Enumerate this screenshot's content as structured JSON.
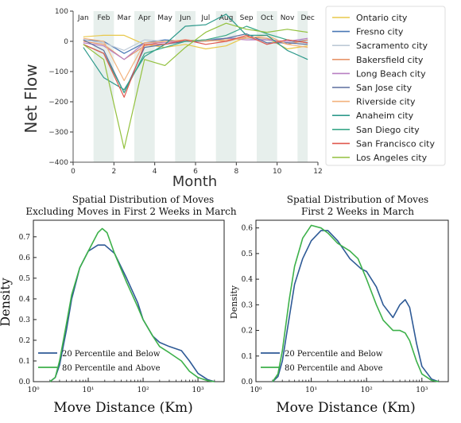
{
  "chart_data": [
    {
      "type": "line",
      "title": "",
      "xlabel": "Month",
      "ylabel": "Net Flow",
      "xlim": [
        0,
        12
      ],
      "ylim": [
        -400,
        100
      ],
      "x_ticks": [
        "0",
        "2",
        "4",
        "6",
        "8",
        "10",
        "12"
      ],
      "y_ticks": [
        "100",
        "0",
        "−100",
        "−200",
        "−300",
        "−400"
      ],
      "month_labels": [
        "Jan",
        "Feb",
        "Mar",
        "Apr",
        "May",
        "Jun",
        "Jul",
        "Aug",
        "Sep",
        "Oct",
        "Nov",
        "Dec"
      ],
      "shaded_bands": [
        [
          1,
          2
        ],
        [
          3,
          4
        ],
        [
          5,
          6
        ],
        [
          7,
          8
        ],
        [
          9,
          10
        ],
        [
          11,
          11.5
        ]
      ],
      "legend_position": "right",
      "x": [
        0.5,
        1.5,
        2.5,
        3.5,
        4.5,
        5.5,
        6.5,
        7.5,
        8.5,
        9.5,
        10.5,
        11.5
      ],
      "series": [
        {
          "name": "Ontario city",
          "color": "#e8c84a",
          "values": [
            15,
            20,
            20,
            -10,
            -20,
            -10,
            -25,
            -15,
            15,
            10,
            -25,
            -15
          ]
        },
        {
          "name": "Fresno city",
          "color": "#4a78b5",
          "values": [
            5,
            0,
            -40,
            -5,
            5,
            0,
            5,
            10,
            10,
            5,
            -5,
            5
          ]
        },
        {
          "name": "Sacramento city",
          "color": "#bdc9d6",
          "values": [
            5,
            -5,
            -30,
            5,
            0,
            0,
            5,
            5,
            10,
            5,
            -5,
            0
          ]
        },
        {
          "name": "Bakersfield city",
          "color": "#e8956a",
          "values": [
            0,
            -10,
            -60,
            -15,
            0,
            0,
            5,
            0,
            15,
            10,
            -10,
            5
          ]
        },
        {
          "name": "Long Beach city",
          "color": "#b87fc2",
          "values": [
            -5,
            -15,
            -60,
            -5,
            -5,
            5,
            0,
            10,
            5,
            5,
            0,
            10
          ]
        },
        {
          "name": "San Jose city",
          "color": "#5c6e9e",
          "values": [
            5,
            -30,
            -170,
            -20,
            -10,
            0,
            0,
            10,
            25,
            -5,
            -5,
            -10
          ]
        },
        {
          "name": "Riverside city",
          "color": "#f2b27c",
          "values": [
            10,
            0,
            -130,
            -5,
            0,
            5,
            0,
            5,
            10,
            20,
            -10,
            -20
          ]
        },
        {
          "name": "Anaheim city",
          "color": "#2f9a8c",
          "values": [
            -20,
            -120,
            -160,
            -50,
            -10,
            50,
            55,
            90,
            20,
            20,
            -30,
            -60
          ]
        },
        {
          "name": "San Diego city",
          "color": "#3aa889",
          "values": [
            -10,
            -40,
            -170,
            -40,
            -20,
            0,
            5,
            20,
            50,
            25,
            5,
            -5
          ]
        },
        {
          "name": "San Francisco city",
          "color": "#e0584e",
          "values": [
            -10,
            -40,
            -185,
            -10,
            -10,
            5,
            -10,
            0,
            20,
            -10,
            5,
            -5
          ]
        },
        {
          "name": "Los Angeles city",
          "color": "#93c13e",
          "values": [
            -10,
            -60,
            -355,
            -60,
            -80,
            -20,
            30,
            60,
            40,
            30,
            40,
            30
          ]
        }
      ]
    },
    {
      "type": "line",
      "title": "Spatial Distribution of Moves",
      "subtitle": "Excluding Moves in First 2 Weeks in March",
      "xlabel": "Move Distance (Km)",
      "ylabel": "Density",
      "x_scale": "log",
      "xlim": [
        1,
        3000
      ],
      "ylim": [
        0,
        0.78
      ],
      "x_ticks": [
        "10⁰",
        "10¹",
        "10²",
        "10³"
      ],
      "y_ticks": [
        "0.0",
        "0.1",
        "0.2",
        "0.3",
        "0.4",
        "0.5",
        "0.6",
        "0.7"
      ],
      "legend_position": "lower-left",
      "series": [
        {
          "name": "20 Percentile and Below",
          "color": "#2e5a96",
          "x": [
            2,
            2.5,
            3,
            4,
            5,
            7,
            10,
            15,
            20,
            30,
            50,
            80,
            100,
            150,
            200,
            300,
            500,
            700,
            1000,
            1500,
            2000
          ],
          "values": [
            0.0,
            0.02,
            0.08,
            0.25,
            0.4,
            0.55,
            0.63,
            0.66,
            0.66,
            0.62,
            0.5,
            0.38,
            0.3,
            0.22,
            0.19,
            0.17,
            0.15,
            0.1,
            0.04,
            0.01,
            0.0
          ]
        },
        {
          "name": "80 Percentile and Above",
          "color": "#3db14a",
          "x": [
            2,
            2.5,
            3,
            4,
            5,
            7,
            10,
            15,
            18,
            22,
            30,
            50,
            80,
            100,
            150,
            200,
            300,
            500,
            700,
            1000,
            1500,
            2000
          ],
          "values": [
            0.0,
            0.02,
            0.1,
            0.28,
            0.42,
            0.55,
            0.63,
            0.72,
            0.74,
            0.72,
            0.62,
            0.48,
            0.36,
            0.3,
            0.22,
            0.17,
            0.14,
            0.1,
            0.05,
            0.02,
            0.005,
            0.0
          ]
        }
      ]
    },
    {
      "type": "line",
      "title": "Spatial Distribution of Moves",
      "subtitle": "First 2 Weeks in March",
      "xlabel": "Move Distance (Km)",
      "ylabel": "Density",
      "x_scale": "log",
      "xlim": [
        1,
        3000
      ],
      "ylim": [
        0,
        0.63
      ],
      "x_ticks": [
        "10⁰",
        "10¹",
        "10²",
        "10³"
      ],
      "y_ticks": [
        "0.0",
        "0.1",
        "0.2",
        "0.3",
        "0.4",
        "0.5",
        "0.6"
      ],
      "legend_position": "lower-left",
      "series": [
        {
          "name": "20 Percentile and Below",
          "color": "#2e5a96",
          "x": [
            2,
            2.5,
            3,
            4,
            5,
            7,
            10,
            15,
            20,
            30,
            50,
            80,
            100,
            150,
            200,
            300,
            400,
            500,
            600,
            800,
            1000,
            1500,
            2000
          ],
          "values": [
            0.0,
            0.02,
            0.08,
            0.25,
            0.38,
            0.48,
            0.55,
            0.59,
            0.59,
            0.55,
            0.48,
            0.44,
            0.43,
            0.37,
            0.3,
            0.25,
            0.3,
            0.32,
            0.29,
            0.15,
            0.06,
            0.01,
            0.0
          ]
        },
        {
          "name": "80 Percentile and Above",
          "color": "#3db14a",
          "x": [
            2,
            2.5,
            3,
            4,
            5,
            7,
            10,
            15,
            20,
            30,
            50,
            70,
            100,
            150,
            200,
            300,
            400,
            500,
            600,
            800,
            1000,
            1500,
            2000
          ],
          "values": [
            0.0,
            0.03,
            0.12,
            0.32,
            0.45,
            0.56,
            0.61,
            0.6,
            0.58,
            0.54,
            0.51,
            0.48,
            0.4,
            0.3,
            0.24,
            0.2,
            0.2,
            0.19,
            0.16,
            0.08,
            0.03,
            0.005,
            0.0
          ]
        }
      ]
    }
  ]
}
